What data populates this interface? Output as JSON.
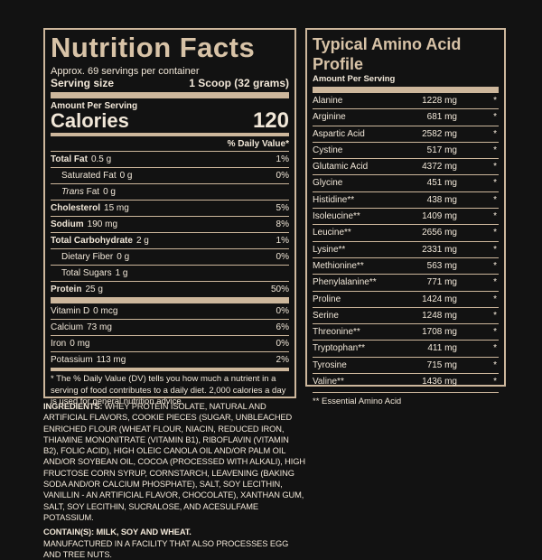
{
  "nutrition": {
    "title": "Nutrition Facts",
    "servings_per_container": "Approx. 69 servings per container",
    "serving_size_label": "Serving size",
    "serving_size_value": "1 Scoop (32 grams)",
    "amount_per_serving": "Amount Per Serving",
    "calories_label": "Calories",
    "calories_value": "120",
    "dv_header": "% Daily Value*",
    "rows": [
      {
        "label": "Total Fat",
        "amount": "0.5 g",
        "dv": "1%",
        "bold": true,
        "indent": false,
        "italic": false
      },
      {
        "label": "Saturated Fat",
        "amount": "0 g",
        "dv": "0%",
        "bold": false,
        "indent": true,
        "italic": false
      },
      {
        "label": "Trans",
        "label_suffix": " Fat",
        "amount": "0 g",
        "dv": "",
        "bold": false,
        "indent": true,
        "italic": true
      },
      {
        "label": "Cholesterol",
        "amount": "15 mg",
        "dv": "5%",
        "bold": true,
        "indent": false,
        "italic": false
      },
      {
        "label": "Sodium",
        "amount": "190 mg",
        "dv": "8%",
        "bold": true,
        "indent": false,
        "italic": false
      },
      {
        "label": "Total Carbohydrate",
        "amount": "2 g",
        "dv": "1%",
        "bold": true,
        "indent": false,
        "italic": false
      },
      {
        "label": "Dietary Fiber",
        "amount": "0 g",
        "dv": "0%",
        "bold": false,
        "indent": true,
        "italic": false
      },
      {
        "label": "Total Sugars",
        "amount": "1 g",
        "dv": "",
        "bold": false,
        "indent": true,
        "italic": false
      },
      {
        "label": "Protein",
        "amount": "25 g",
        "dv": "50%",
        "bold": true,
        "indent": false,
        "italic": false
      }
    ],
    "minerals": [
      {
        "label": "Vitamin D",
        "amount": "0 mcg",
        "dv": "0%"
      },
      {
        "label": "Calcium",
        "amount": "73 mg",
        "dv": "6%"
      },
      {
        "label": "Iron",
        "amount": "0 mg",
        "dv": "0%"
      },
      {
        "label": "Potassium",
        "amount": "113 mg",
        "dv": "2%"
      }
    ],
    "footnote": "* The % Daily Value (DV) tells you how much a nutrient in a serving of food contributes to a daily diet. 2,000 calories a day is used for general nutrition advice."
  },
  "amino": {
    "title": "Typical Amino Acid Profile",
    "subtitle": "Amount Per Serving",
    "rows": [
      {
        "name": "Alanine",
        "mg": "1228 mg",
        "star": "*"
      },
      {
        "name": "Arginine",
        "mg": "681 mg",
        "star": "*"
      },
      {
        "name": "Aspartic Acid",
        "mg": "2582 mg",
        "star": "*"
      },
      {
        "name": "Cystine",
        "mg": "517 mg",
        "star": "*"
      },
      {
        "name": "Glutamic Acid",
        "mg": "4372 mg",
        "star": "*"
      },
      {
        "name": "Glycine",
        "mg": "451 mg",
        "star": "*"
      },
      {
        "name": "Histidine**",
        "mg": "438 mg",
        "star": "*"
      },
      {
        "name": "Isoleucine**",
        "mg": "1409 mg",
        "star": "*"
      },
      {
        "name": "Leucine**",
        "mg": "2656 mg",
        "star": "*"
      },
      {
        "name": "Lysine**",
        "mg": "2331 mg",
        "star": "*"
      },
      {
        "name": "Methionine**",
        "mg": "563 mg",
        "star": "*"
      },
      {
        "name": "Phenylalanine**",
        "mg": "771 mg",
        "star": "*"
      },
      {
        "name": "Proline",
        "mg": "1424 mg",
        "star": "*"
      },
      {
        "name": "Serine",
        "mg": "1248 mg",
        "star": "*"
      },
      {
        "name": "Threonine**",
        "mg": "1708 mg",
        "star": "*"
      },
      {
        "name": "Tryptophan**",
        "mg": "411 mg",
        "star": "*"
      },
      {
        "name": "Tyrosine",
        "mg": "715 mg",
        "star": "*"
      },
      {
        "name": "Valine**",
        "mg": "1436 mg",
        "star": "*"
      }
    ],
    "note": "** Essential Amino Acid"
  },
  "ingredients": {
    "heading": "INGREDIENTS:",
    "text": "WHEY PROTEIN ISOLATE, NATURAL AND ARTIFICIAL FLAVORS, COOKIE PIECES (SUGAR, UNBLEACHED ENRICHED FLOUR (WHEAT FLOUR, NIACIN, REDUCED IRON, THIAMINE MONONITRATE (VITAMIN B1), RIBOFLAVIN (VITAMIN B2), FOLIC ACID), HIGH OLEIC CANOLA OIL AND/OR PALM OIL AND/OR SOYBEAN OIL, COCOA (PROCESSED WITH ALKALI), HIGH FRUCTOSE CORN SYRUP, CORNSTARCH, LEAVENING (BAKING SODA AND/OR CALCIUM PHOSPHATE), SALT, SOY LECITHIN, VANILLIN - AN ARTIFICIAL FLAVOR, CHOCOLATE), XANTHAN GUM, SALT, SOY LECITHIN, SUCRALOSE, AND ACESULFAME POTASSIUM.",
    "contains": "CONTAIN(S): MILK, SOY AND WHEAT.",
    "facility": "MANUFACTURED IN A FACILITY THAT ALSO PROCESSES EGG AND TREE NUTS."
  }
}
